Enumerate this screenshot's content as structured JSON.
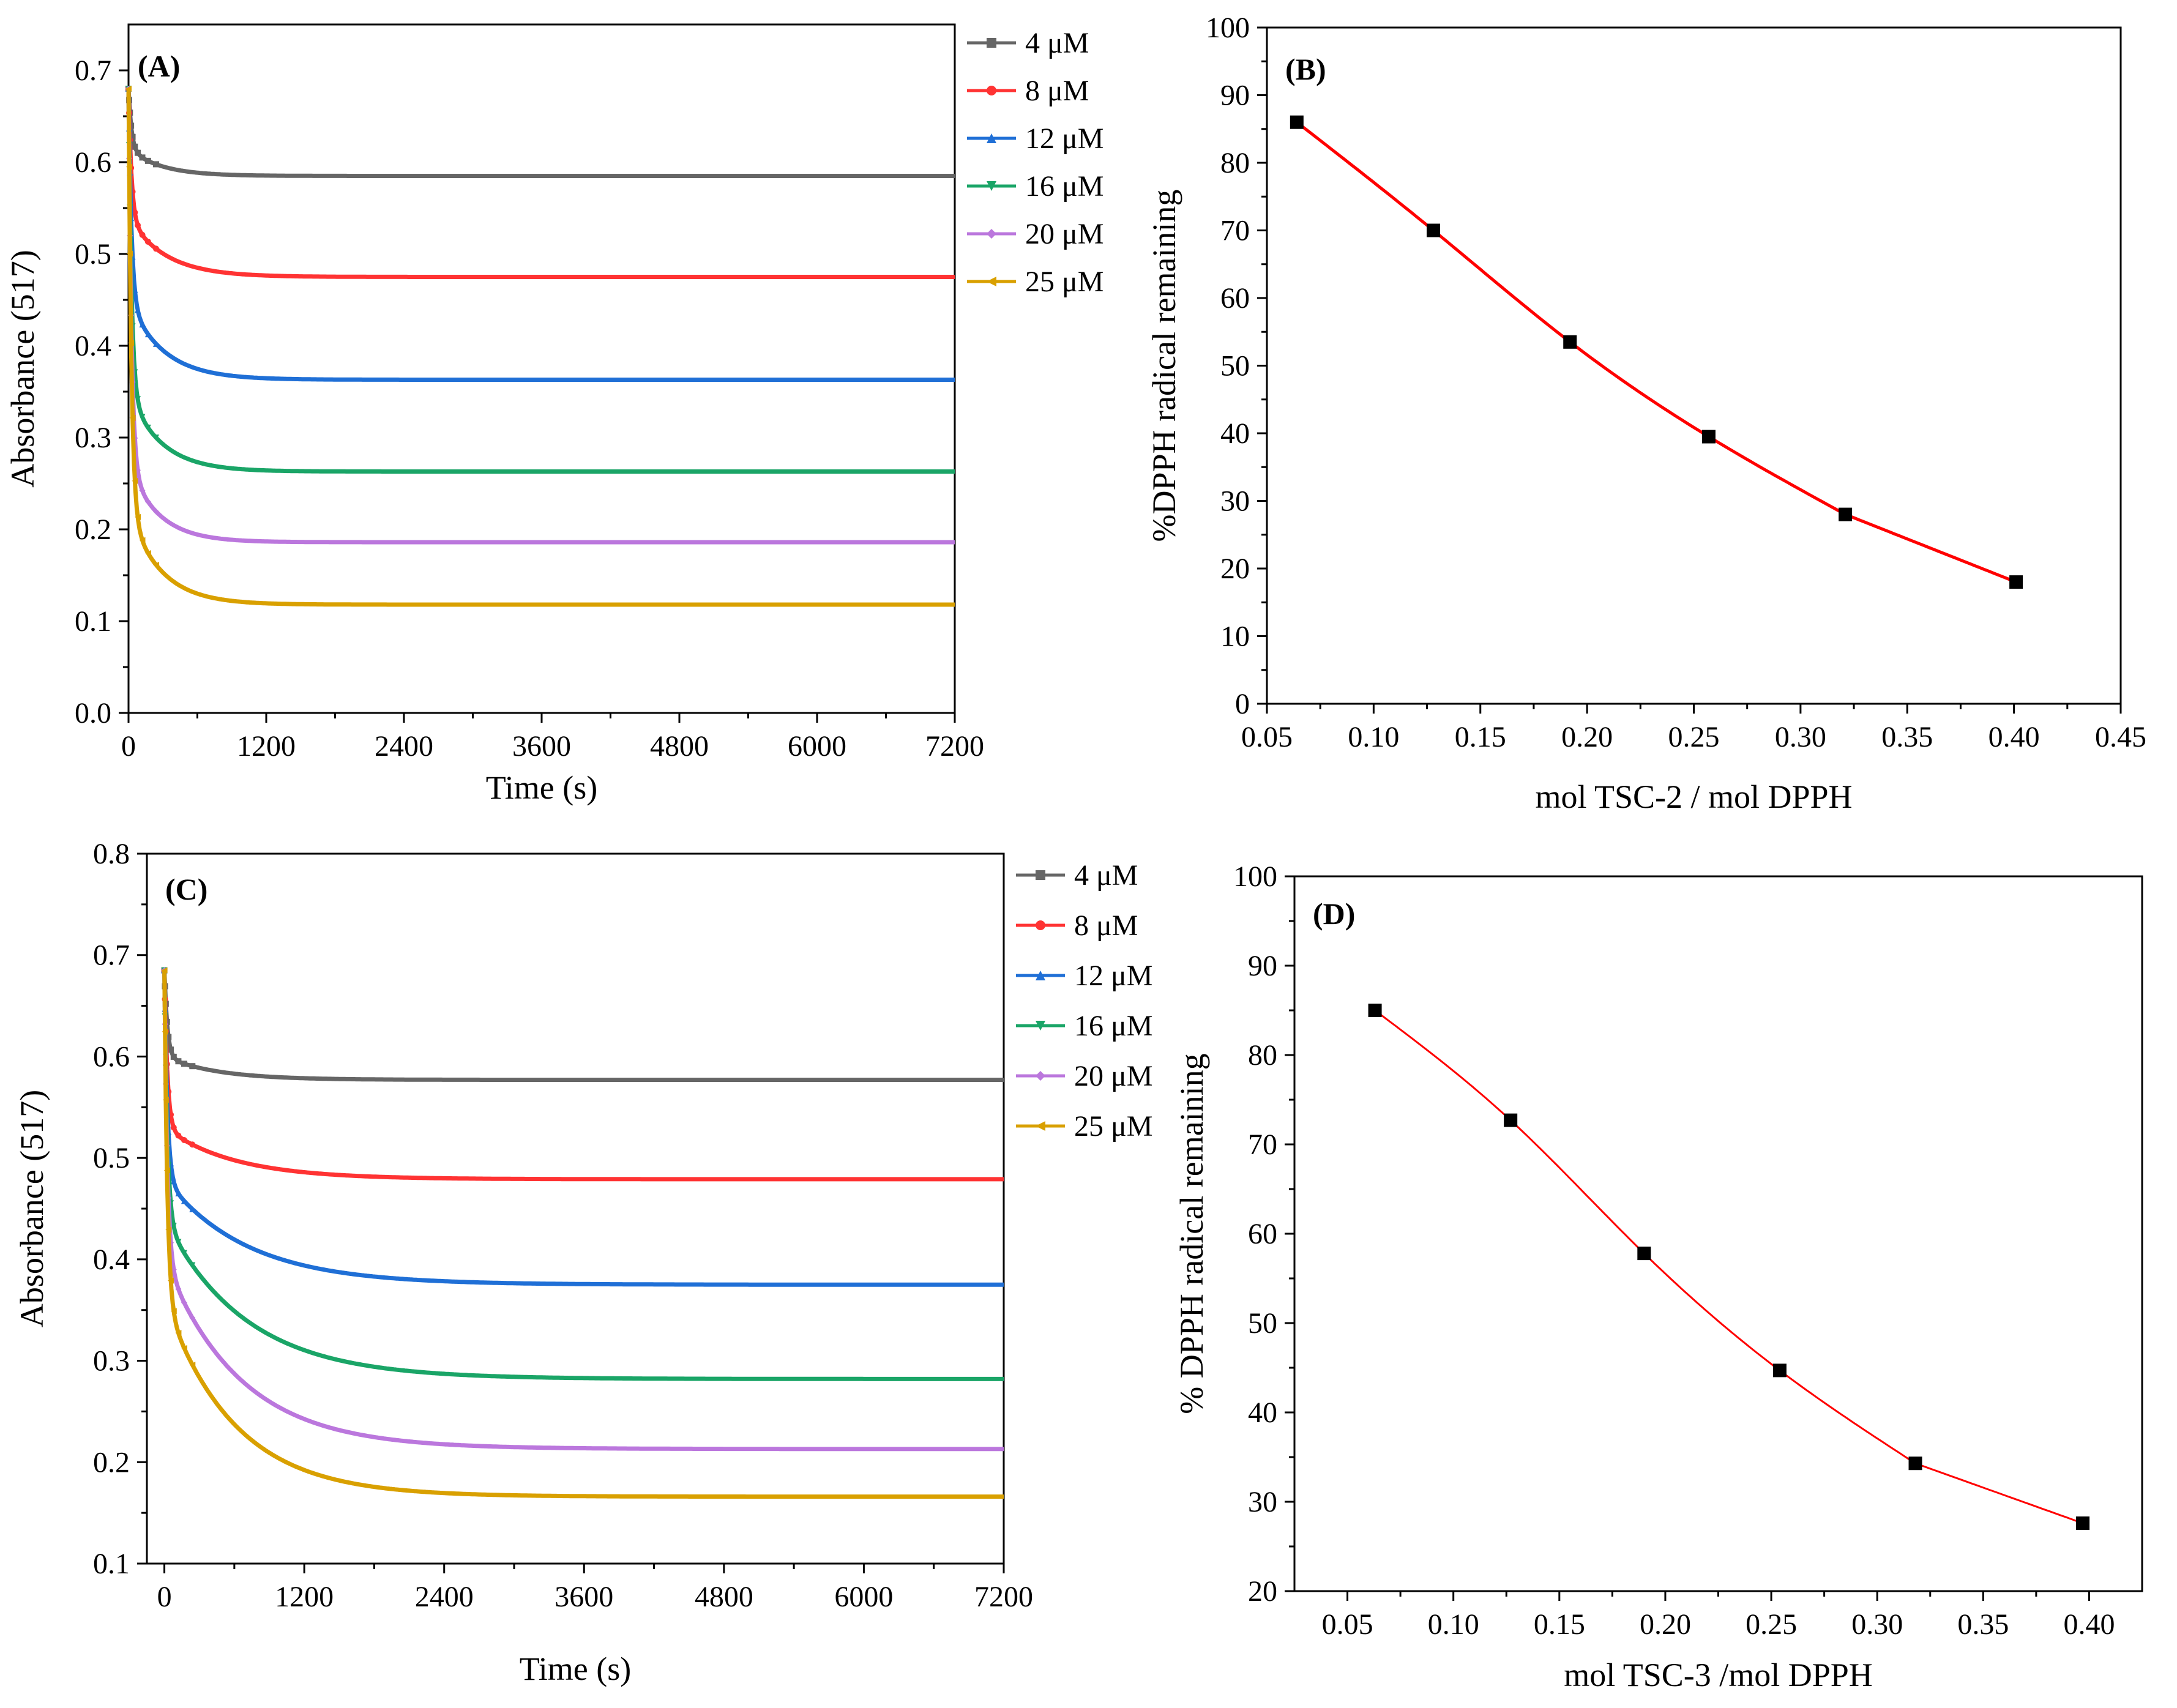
{
  "figure": {
    "panels": [
      "A",
      "B",
      "C",
      "D"
    ]
  },
  "chart_data": [
    {
      "id": "A",
      "type": "line",
      "panel_label": "(A)",
      "xlabel": "Time (s)",
      "ylabel": "Absorbance (517)",
      "xlim": [
        0,
        7200
      ],
      "ylim": [
        0,
        0.75
      ],
      "xticks": [
        0,
        1200,
        2400,
        3600,
        4800,
        6000,
        7200
      ],
      "yticks": [
        0.0,
        0.1,
        0.2,
        0.3,
        0.4,
        0.5,
        0.6,
        0.7
      ],
      "tick_format": {
        "x": 0,
        "y": 1
      },
      "legend_position": "outside-top-right",
      "series": [
        {
          "name": "4 μM",
          "color": "#666666",
          "marker": "square",
          "start": 0.68,
          "mid": 0.615,
          "plateau": 0.585,
          "tau": 280
        },
        {
          "name": "8 μM",
          "color": "#ff3333",
          "marker": "circle",
          "start": 0.68,
          "mid": 0.54,
          "plateau": 0.475,
          "tau": 320
        },
        {
          "name": "12 μM",
          "color": "#1f6fd6",
          "marker": "triangle-up",
          "start": 0.68,
          "mid": 0.45,
          "plateau": 0.363,
          "tau": 300
        },
        {
          "name": "16 μM",
          "color": "#1aa567",
          "marker": "triangle-down",
          "start": 0.68,
          "mid": 0.35,
          "plateau": 0.263,
          "tau": 280
        },
        {
          "name": "20 μM",
          "color": "#bb77dd",
          "marker": "diamond",
          "start": 0.68,
          "mid": 0.27,
          "plateau": 0.186,
          "tau": 260
        },
        {
          "name": "25 μM",
          "color": "#d9a000",
          "marker": "triangle-left",
          "start": 0.68,
          "mid": 0.22,
          "plateau": 0.118,
          "tau": 280
        }
      ]
    },
    {
      "id": "B",
      "type": "scatter",
      "panel_label": "(B)",
      "xlabel": "mol TSC-2 / mol DPPH",
      "ylabel": "%DPPH radical remaining",
      "xlim": [
        0.05,
        0.45
      ],
      "ylim": [
        0,
        100
      ],
      "xticks": [
        0.05,
        0.1,
        0.15,
        0.2,
        0.25,
        0.3,
        0.35,
        0.4,
        0.45
      ],
      "yticks": [
        0,
        10,
        20,
        30,
        40,
        50,
        60,
        70,
        80,
        90,
        100
      ],
      "tick_format": {
        "x": 2,
        "y": 0
      },
      "points": {
        "x": [
          0.064,
          0.128,
          0.192,
          0.257,
          0.321,
          0.401
        ],
        "y": [
          86,
          70,
          53.5,
          39.5,
          28,
          18
        ]
      },
      "fit_color": "#ff0000"
    },
    {
      "id": "C",
      "type": "line",
      "panel_label": "(C)",
      "xlabel": "Time (s)",
      "ylabel": "Absorbance (517)",
      "xlim": [
        -150,
        7200
      ],
      "ylim": [
        0.1,
        0.8
      ],
      "xticks": [
        0,
        1200,
        2400,
        3600,
        4800,
        6000,
        7200
      ],
      "yticks": [
        0.1,
        0.2,
        0.3,
        0.4,
        0.5,
        0.6,
        0.7,
        0.8
      ],
      "tick_format": {
        "x": 0,
        "y": 1
      },
      "legend_position": "outside-top-right",
      "series": [
        {
          "name": "4 μM",
          "color": "#666666",
          "marker": "square",
          "start": 0.685,
          "mid": 0.6,
          "plateau": 0.577,
          "tau": 450
        },
        {
          "name": "8 μM",
          "color": "#ff3333",
          "marker": "circle",
          "start": 0.685,
          "mid": 0.53,
          "plateau": 0.479,
          "tau": 600
        },
        {
          "name": "12 μM",
          "color": "#1f6fd6",
          "marker": "triangle-up",
          "start": 0.685,
          "mid": 0.48,
          "plateau": 0.375,
          "tau": 700
        },
        {
          "name": "16 μM",
          "color": "#1aa567",
          "marker": "triangle-down",
          "start": 0.685,
          "mid": 0.44,
          "plateau": 0.282,
          "tau": 700
        },
        {
          "name": "20 μM",
          "color": "#bb77dd",
          "marker": "diamond",
          "start": 0.685,
          "mid": 0.4,
          "plateau": 0.213,
          "tau": 650
        },
        {
          "name": "25 μM",
          "color": "#d9a000",
          "marker": "triangle-left",
          "start": 0.685,
          "mid": 0.36,
          "plateau": 0.166,
          "tau": 600
        }
      ]
    },
    {
      "id": "D",
      "type": "scatter",
      "panel_label": "(D)",
      "xlabel": "mol TSC-3 /mol DPPH",
      "ylabel": "% DPPH radical remaining",
      "xlim": [
        0.025,
        0.425
      ],
      "ylim": [
        20,
        100
      ],
      "xticks": [
        0.05,
        0.1,
        0.15,
        0.2,
        0.25,
        0.3,
        0.35,
        0.4
      ],
      "yticks": [
        20,
        30,
        40,
        50,
        60,
        70,
        80,
        90,
        100
      ],
      "tick_format": {
        "x": 2,
        "y": 0
      },
      "points": {
        "x": [
          0.063,
          0.127,
          0.19,
          0.254,
          0.318,
          0.397
        ],
        "y": [
          85,
          72.7,
          57.8,
          44.7,
          34.3,
          27.6
        ]
      },
      "fit_color": "#ff0000"
    }
  ]
}
